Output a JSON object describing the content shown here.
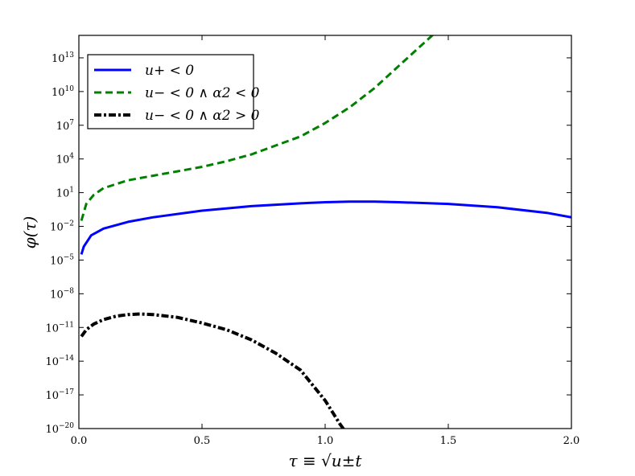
{
  "chart_data": {
    "type": "line",
    "xlabel": "τ ≡ √u±t",
    "ylabel": "φ(τ)",
    "xlim": [
      0.0,
      2.0
    ],
    "ylim_log10": [
      -20,
      15
    ],
    "yscale": "log",
    "grid": false,
    "legend_position": "top-left",
    "x_ticks": [
      "0.0",
      "0.5",
      "1.0",
      "1.5",
      "2.0"
    ],
    "y_ticks": [
      {
        "base": "10",
        "exp": "−20",
        "log10": -20
      },
      {
        "base": "10",
        "exp": "−17",
        "log10": -17
      },
      {
        "base": "10",
        "exp": "−14",
        "log10": -14
      },
      {
        "base": "10",
        "exp": "−11",
        "log10": -11
      },
      {
        "base": "10",
        "exp": "−8",
        "log10": -8
      },
      {
        "base": "10",
        "exp": "−5",
        "log10": -5
      },
      {
        "base": "10",
        "exp": "−2",
        "log10": -2
      },
      {
        "base": "10",
        "exp": "1",
        "log10": 1
      },
      {
        "base": "10",
        "exp": "4",
        "log10": 4
      },
      {
        "base": "10",
        "exp": "7",
        "log10": 7
      },
      {
        "base": "10",
        "exp": "10",
        "log10": 10
      },
      {
        "base": "10",
        "exp": "13",
        "log10": 13
      }
    ],
    "series": [
      {
        "name": "u+ < 0",
        "color": "#0000ff",
        "dash": "solid",
        "points_log10": [
          [
            0.01,
            -4.5
          ],
          [
            0.02,
            -3.8
          ],
          [
            0.05,
            -2.8
          ],
          [
            0.1,
            -2.2
          ],
          [
            0.2,
            -1.6
          ],
          [
            0.3,
            -1.2
          ],
          [
            0.5,
            -0.6
          ],
          [
            0.7,
            -0.2
          ],
          [
            0.9,
            0.05
          ],
          [
            1.0,
            0.15
          ],
          [
            1.1,
            0.2
          ],
          [
            1.2,
            0.2
          ],
          [
            1.3,
            0.15
          ],
          [
            1.5,
            0.0
          ],
          [
            1.7,
            -0.3
          ],
          [
            1.9,
            -0.8
          ],
          [
            2.0,
            -1.2
          ]
        ]
      },
      {
        "name": "u− < 0 ∧ α2 < 0",
        "color": "#008000",
        "dash": "dashed",
        "points_log10": [
          [
            0.01,
            -1.5
          ],
          [
            0.03,
            0.0
          ],
          [
            0.06,
            0.8
          ],
          [
            0.1,
            1.4
          ],
          [
            0.2,
            2.1
          ],
          [
            0.3,
            2.5
          ],
          [
            0.4,
            2.9
          ],
          [
            0.5,
            3.3
          ],
          [
            0.6,
            3.8
          ],
          [
            0.7,
            4.4
          ],
          [
            0.8,
            5.2
          ],
          [
            0.9,
            6.0
          ],
          [
            1.0,
            7.2
          ],
          [
            1.1,
            8.6
          ],
          [
            1.2,
            10.3
          ],
          [
            1.3,
            12.3
          ],
          [
            1.4,
            14.3
          ],
          [
            1.445,
            15.2
          ]
        ]
      },
      {
        "name": "u− < 0 ∧ α2 > 0",
        "color": "#000000",
        "dash": "dashdot",
        "points_log10": [
          [
            0.01,
            -11.8
          ],
          [
            0.03,
            -11.2
          ],
          [
            0.06,
            -10.7
          ],
          [
            0.1,
            -10.3
          ],
          [
            0.15,
            -10.0
          ],
          [
            0.2,
            -9.85
          ],
          [
            0.25,
            -9.8
          ],
          [
            0.3,
            -9.85
          ],
          [
            0.4,
            -10.1
          ],
          [
            0.5,
            -10.6
          ],
          [
            0.6,
            -11.2
          ],
          [
            0.7,
            -12.1
          ],
          [
            0.8,
            -13.3
          ],
          [
            0.9,
            -14.8
          ],
          [
            1.0,
            -17.5
          ],
          [
            1.06,
            -19.6
          ],
          [
            1.08,
            -20.2
          ]
        ]
      }
    ]
  }
}
